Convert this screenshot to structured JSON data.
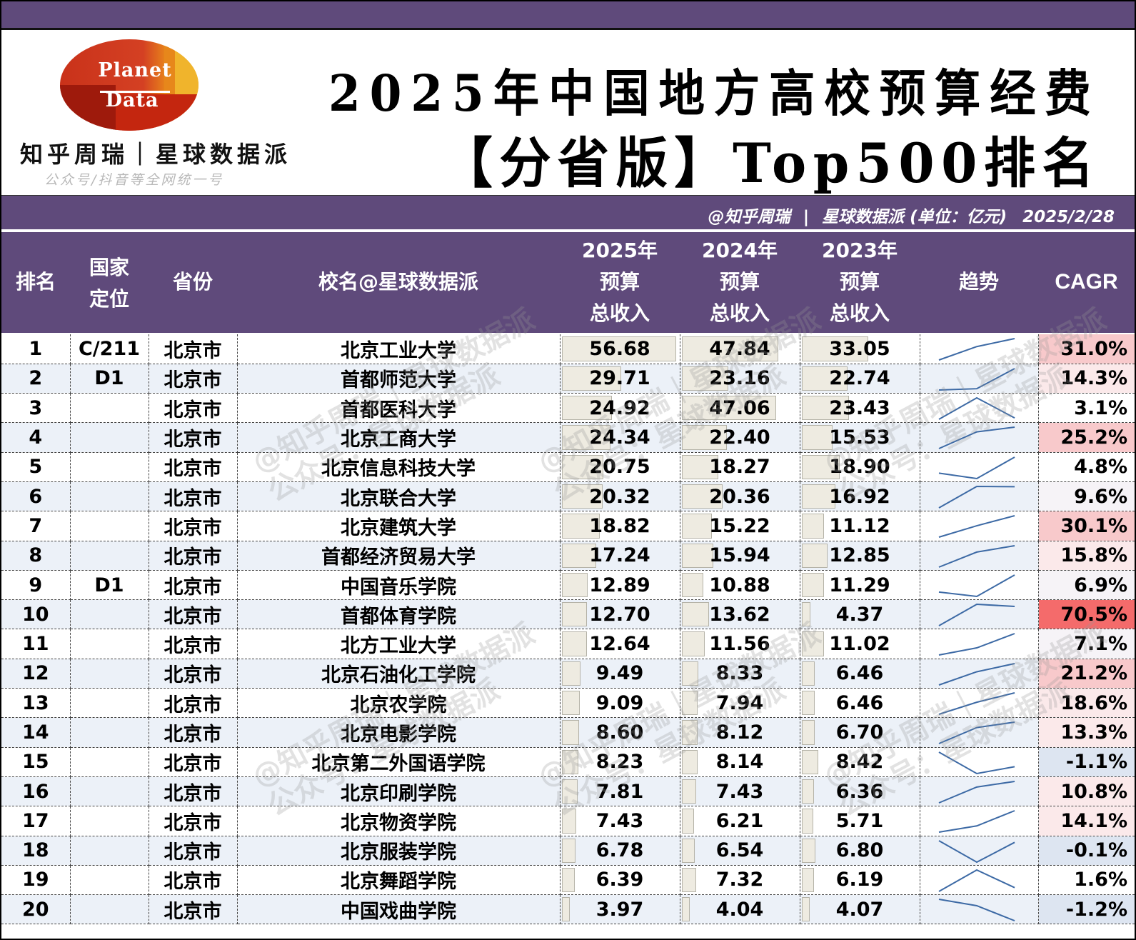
{
  "header": {
    "logo_line1": "Planet",
    "logo_line2": "Data",
    "brand": "知乎周瑞｜星球数据派",
    "brand_sub": "公众号/抖音等全网统一号",
    "title_line1": "2025年中国地方高校预算经费",
    "title_line2": "【分省版】Top500排名"
  },
  "subbar": {
    "author": "@知乎周瑞",
    "separator": "|",
    "brand": "星球数据派",
    "unit": "(单位：亿元)",
    "date": "2025/2/28"
  },
  "columns": {
    "rank": "排名",
    "level_line1": "国家",
    "level_line2": "定位",
    "province": "省份",
    "school": "校名@星球数据派",
    "y2025_line1": "2025年",
    "y2025_line2": "预算",
    "y2025_line3": "总收入",
    "y2024_line1": "2024年",
    "y2024_line2": "预算",
    "y2024_line3": "总收入",
    "y2023_line1": "2023年",
    "y2023_line2": "预算",
    "y2023_line3": "总收入",
    "trend": "趋势",
    "cagr": "CAGR"
  },
  "watermark": {
    "line1": "@知乎周瑞｜星球数据派",
    "line2": "公众号：星球数据派"
  },
  "colors": {
    "purple": "#5f4a7b",
    "row_alt": "#ecf1f8",
    "bar_fill": "#eeebe1",
    "spark_line": "#3d6aa5",
    "cagr_strong": "#f46b6b",
    "cagr_mid": "#f8c9cb",
    "cagr_light": "#fbe9ea",
    "cagr_neg": "#dde5f1"
  },
  "rows": [
    {
      "rank": "1",
      "level": "C/211",
      "province": "北京市",
      "school": "北京工业大学",
      "y2025": "56.68",
      "y2024": "47.84",
      "y2023": "33.05",
      "cagr": "31.0%"
    },
    {
      "rank": "2",
      "level": "D1",
      "province": "北京市",
      "school": "首都师范大学",
      "y2025": "29.71",
      "y2024": "23.16",
      "y2023": "22.74",
      "cagr": "14.3%"
    },
    {
      "rank": "3",
      "level": "",
      "province": "北京市",
      "school": "首都医科大学",
      "y2025": "24.92",
      "y2024": "47.06",
      "y2023": "23.43",
      "cagr": "3.1%"
    },
    {
      "rank": "4",
      "level": "",
      "province": "北京市",
      "school": "北京工商大学",
      "y2025": "24.34",
      "y2024": "22.40",
      "y2023": "15.53",
      "cagr": "25.2%"
    },
    {
      "rank": "5",
      "level": "",
      "province": "北京市",
      "school": "北京信息科技大学",
      "y2025": "20.75",
      "y2024": "18.27",
      "y2023": "18.90",
      "cagr": "4.8%"
    },
    {
      "rank": "6",
      "level": "",
      "province": "北京市",
      "school": "北京联合大学",
      "y2025": "20.32",
      "y2024": "20.36",
      "y2023": "16.92",
      "cagr": "9.6%"
    },
    {
      "rank": "7",
      "level": "",
      "province": "北京市",
      "school": "北京建筑大学",
      "y2025": "18.82",
      "y2024": "15.22",
      "y2023": "11.12",
      "cagr": "30.1%"
    },
    {
      "rank": "8",
      "level": "",
      "province": "北京市",
      "school": "首都经济贸易大学",
      "y2025": "17.24",
      "y2024": "15.94",
      "y2023": "12.85",
      "cagr": "15.8%"
    },
    {
      "rank": "9",
      "level": "D1",
      "province": "北京市",
      "school": "中国音乐学院",
      "y2025": "12.89",
      "y2024": "10.88",
      "y2023": "11.29",
      "cagr": "6.9%"
    },
    {
      "rank": "10",
      "level": "",
      "province": "北京市",
      "school": "首都体育学院",
      "y2025": "12.70",
      "y2024": "13.62",
      "y2023": "4.37",
      "cagr": "70.5%"
    },
    {
      "rank": "11",
      "level": "",
      "province": "北京市",
      "school": "北方工业大学",
      "y2025": "12.64",
      "y2024": "11.56",
      "y2023": "11.02",
      "cagr": "7.1%"
    },
    {
      "rank": "12",
      "level": "",
      "province": "北京市",
      "school": "北京石油化工学院",
      "y2025": "9.49",
      "y2024": "8.33",
      "y2023": "6.46",
      "cagr": "21.2%"
    },
    {
      "rank": "13",
      "level": "",
      "province": "北京市",
      "school": "北京农学院",
      "y2025": "9.09",
      "y2024": "7.94",
      "y2023": "6.46",
      "cagr": "18.6%"
    },
    {
      "rank": "14",
      "level": "",
      "province": "北京市",
      "school": "北京电影学院",
      "y2025": "8.60",
      "y2024": "8.12",
      "y2023": "6.70",
      "cagr": "13.3%"
    },
    {
      "rank": "15",
      "level": "",
      "province": "北京市",
      "school": "北京第二外国语学院",
      "y2025": "8.23",
      "y2024": "8.14",
      "y2023": "8.42",
      "cagr": "-1.1%"
    },
    {
      "rank": "16",
      "level": "",
      "province": "北京市",
      "school": "北京印刷学院",
      "y2025": "7.81",
      "y2024": "7.43",
      "y2023": "6.36",
      "cagr": "10.8%"
    },
    {
      "rank": "17",
      "level": "",
      "province": "北京市",
      "school": "北京物资学院",
      "y2025": "7.43",
      "y2024": "6.21",
      "y2023": "5.71",
      "cagr": "14.1%"
    },
    {
      "rank": "18",
      "level": "",
      "province": "北京市",
      "school": "北京服装学院",
      "y2025": "6.78",
      "y2024": "6.54",
      "y2023": "6.80",
      "cagr": "-0.1%"
    },
    {
      "rank": "19",
      "level": "",
      "province": "北京市",
      "school": "北京舞蹈学院",
      "y2025": "6.39",
      "y2024": "7.32",
      "y2023": "6.19",
      "cagr": "1.6%"
    },
    {
      "rank": "20",
      "level": "",
      "province": "北京市",
      "school": "中国戏曲学院",
      "y2025": "3.97",
      "y2024": "4.04",
      "y2023": "4.07",
      "cagr": "-1.2%"
    }
  ]
}
